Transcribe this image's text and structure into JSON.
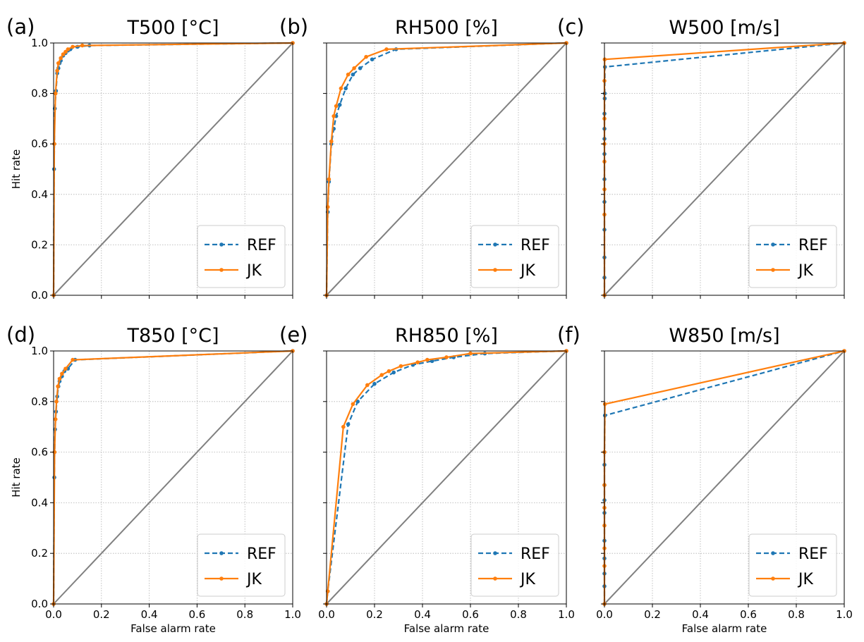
{
  "colors": {
    "ref": "#1f77b4",
    "jk": "#ff7f0e",
    "diagonal": "#808080",
    "grid": "#b0b0b0"
  },
  "legend": {
    "ref": "REF",
    "jk": "JK",
    "placement": "lower right"
  },
  "chart_data": [
    {
      "type": "line",
      "panel": "(a)",
      "title": "T500 [°C]",
      "xlabel": "",
      "ylabel": "Hit rate",
      "xlim": [
        0,
        1
      ],
      "ylim": [
        0,
        1
      ],
      "grid": true,
      "xticks": [],
      "yticks": [
        "0.0",
        "0.2",
        "0.4",
        "0.6",
        "0.8",
        "1.0"
      ],
      "series": [
        {
          "name": "REF",
          "style": "dashed",
          "x": [
            0,
            0.002,
            0.005,
            0.01,
            0.015,
            0.02,
            0.025,
            0.03,
            0.04,
            0.05,
            0.06,
            0.07,
            0.1,
            0.15,
            1.0
          ],
          "y": [
            0,
            0.5,
            0.74,
            0.81,
            0.88,
            0.9,
            0.92,
            0.93,
            0.95,
            0.96,
            0.97,
            0.975,
            0.985,
            0.99,
            1.0
          ]
        },
        {
          "name": "JK",
          "style": "solid",
          "x": [
            0,
            0.003,
            0.008,
            0.015,
            0.02,
            0.03,
            0.04,
            0.05,
            0.06,
            0.08,
            0.12,
            1.0
          ],
          "y": [
            0,
            0.6,
            0.8,
            0.89,
            0.92,
            0.94,
            0.955,
            0.965,
            0.975,
            0.985,
            0.99,
            1.0
          ]
        }
      ]
    },
    {
      "type": "line",
      "panel": "(b)",
      "title": "RH500 [%]",
      "xlabel": "",
      "ylabel": "",
      "xlim": [
        0,
        1
      ],
      "ylim": [
        0,
        1
      ],
      "grid": true,
      "xticks": [],
      "yticks": [],
      "series": [
        {
          "name": "REF",
          "style": "dashed",
          "x": [
            0,
            0.005,
            0.01,
            0.02,
            0.03,
            0.04,
            0.055,
            0.08,
            0.11,
            0.14,
            0.19,
            0.29,
            1.0
          ],
          "y": [
            0,
            0.33,
            0.45,
            0.6,
            0.66,
            0.71,
            0.755,
            0.82,
            0.875,
            0.9,
            0.935,
            0.975,
            1.0
          ]
        },
        {
          "name": "JK",
          "style": "solid",
          "x": [
            0,
            0.005,
            0.01,
            0.02,
            0.03,
            0.04,
            0.06,
            0.09,
            0.115,
            0.165,
            0.25,
            1.0
          ],
          "y": [
            0,
            0.35,
            0.46,
            0.61,
            0.71,
            0.75,
            0.82,
            0.875,
            0.9,
            0.945,
            0.975,
            1.0
          ]
        }
      ]
    },
    {
      "type": "line",
      "panel": "(c)",
      "title": "W500 [m/s]",
      "xlabel": "",
      "ylabel": "",
      "xlim": [
        0,
        1
      ],
      "ylim": [
        0,
        1
      ],
      "grid": true,
      "xticks": [],
      "yticks": [],
      "series": [
        {
          "name": "REF",
          "style": "dashed",
          "x": [
            0,
            0,
            0,
            0,
            0,
            0,
            0,
            0,
            0,
            0,
            0.001,
            0.001,
            0.002,
            1.0
          ],
          "y": [
            0,
            0.07,
            0.15,
            0.26,
            0.37,
            0.46,
            0.56,
            0.62,
            0.66,
            0.72,
            0.78,
            0.8,
            0.905,
            1.0
          ]
        },
        {
          "name": "JK",
          "style": "solid",
          "x": [
            0,
            0,
            0,
            0,
            0,
            0,
            0,
            0.001,
            1.0
          ],
          "y": [
            0,
            0.32,
            0.42,
            0.53,
            0.6,
            0.7,
            0.85,
            0.935,
            1.0
          ]
        }
      ]
    },
    {
      "type": "line",
      "panel": "(d)",
      "title": "T850 [°C]",
      "xlabel": "False alarm rate",
      "ylabel": "Hit rate",
      "xlim": [
        0,
        1
      ],
      "ylim": [
        0,
        1
      ],
      "grid": true,
      "xticks": [
        "0.0",
        "0.2",
        "0.4",
        "0.6",
        "0.8",
        "1.0"
      ],
      "yticks": [
        "0.0",
        "0.2",
        "0.4",
        "0.6",
        "0.8",
        "1.0"
      ],
      "series": [
        {
          "name": "REF",
          "style": "dashed",
          "x": [
            0,
            0.003,
            0.006,
            0.01,
            0.015,
            0.02,
            0.025,
            0.035,
            0.045,
            0.06,
            0.09,
            1.0
          ],
          "y": [
            0,
            0.5,
            0.69,
            0.76,
            0.82,
            0.86,
            0.88,
            0.9,
            0.92,
            0.93,
            0.965,
            1.0
          ]
        },
        {
          "name": "JK",
          "style": "solid",
          "x": [
            0,
            0.004,
            0.008,
            0.012,
            0.018,
            0.025,
            0.035,
            0.05,
            0.08,
            1.0
          ],
          "y": [
            0,
            0.6,
            0.73,
            0.8,
            0.86,
            0.89,
            0.91,
            0.93,
            0.965,
            1.0
          ]
        }
      ]
    },
    {
      "type": "line",
      "panel": "(e)",
      "title": "RH850 [%]",
      "xlabel": "False alarm rate",
      "ylabel": "",
      "xlim": [
        0,
        1
      ],
      "ylim": [
        0,
        1
      ],
      "grid": true,
      "xticks": [
        "0.0",
        "0.2",
        "0.4",
        "0.6",
        "0.8",
        "1.0"
      ],
      "yticks": [],
      "series": [
        {
          "name": "REF",
          "style": "dashed",
          "x": [
            0,
            0.005,
            0.09,
            0.13,
            0.2,
            0.28,
            0.36,
            0.44,
            0.53,
            0.66,
            1.0
          ],
          "y": [
            0,
            0.05,
            0.71,
            0.8,
            0.87,
            0.915,
            0.945,
            0.96,
            0.975,
            0.99,
            1.0
          ]
        },
        {
          "name": "JK",
          "style": "solid",
          "x": [
            0,
            0.005,
            0.07,
            0.11,
            0.17,
            0.23,
            0.26,
            0.31,
            0.38,
            0.42,
            0.5,
            0.6,
            1.0
          ],
          "y": [
            0,
            0.05,
            0.7,
            0.79,
            0.865,
            0.905,
            0.92,
            0.94,
            0.955,
            0.965,
            0.975,
            0.99,
            1.0
          ]
        }
      ]
    },
    {
      "type": "line",
      "panel": "(f)",
      "title": "W850 [m/s]",
      "xlabel": "False alarm rate",
      "ylabel": "",
      "xlim": [
        0,
        1
      ],
      "ylim": [
        0,
        1
      ],
      "grid": true,
      "xticks": [
        "0.0",
        "0.2",
        "0.4",
        "0.6",
        "0.8",
        "1.0"
      ],
      "yticks": [],
      "series": [
        {
          "name": "REF",
          "style": "dashed",
          "x": [
            0,
            0,
            0,
            0,
            0,
            0,
            0,
            0,
            0,
            0,
            0.002,
            1.0
          ],
          "y": [
            0,
            0.07,
            0.12,
            0.18,
            0.25,
            0.36,
            0.41,
            0.47,
            0.55,
            0.6,
            0.745,
            1.0
          ]
        },
        {
          "name": "JK",
          "style": "solid",
          "x": [
            0,
            0,
            0,
            0,
            0,
            0,
            0,
            0.002,
            1.0
          ],
          "y": [
            0,
            0.15,
            0.22,
            0.31,
            0.38,
            0.47,
            0.6,
            0.79,
            1.0
          ]
        }
      ]
    }
  ]
}
